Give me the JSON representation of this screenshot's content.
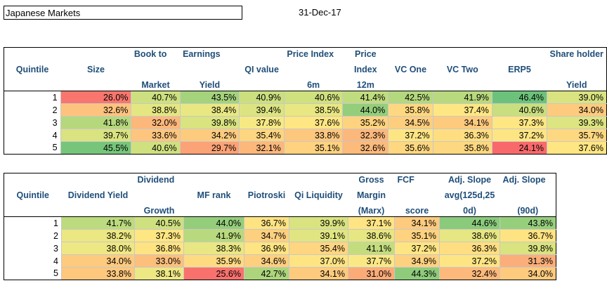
{
  "header": {
    "title": "Japanese Markets",
    "date": "31-Dec-17"
  },
  "table1": {
    "headers": [
      {
        "top": "",
        "bottom": "",
        "single": "Quintile"
      },
      {
        "top": "",
        "bottom": "",
        "single": "Size"
      },
      {
        "top": "Book to",
        "bottom": "Market",
        "single": ""
      },
      {
        "top": "Earnings",
        "bottom": "Yield",
        "single": ""
      },
      {
        "top": "",
        "bottom": "",
        "single": "QI value"
      },
      {
        "top": "Price Index",
        "bottom": "6m",
        "single": ""
      },
      {
        "top": "Price",
        "mid": "Index",
        "bottom": "12m",
        "single": ""
      },
      {
        "top": "",
        "bottom": "",
        "single": "VC One"
      },
      {
        "top": "",
        "bottom": "",
        "single": "VC Two"
      },
      {
        "top": "",
        "bottom": "",
        "single": "ERP5"
      },
      {
        "top": "Share holder",
        "bottom": "Yield",
        "single": ""
      }
    ],
    "rows": [
      {
        "q": "1",
        "vals": [
          "26.0%",
          "40.7%",
          "43.5%",
          "40.9%",
          "40.6%",
          "41.4%",
          "42.5%",
          "41.9%",
          "46.4%",
          "39.0%"
        ],
        "colors": [
          "#f8766d",
          "#cde07f",
          "#a4d37c",
          "#cbdf7f",
          "#cfe07f",
          "#bfdc7e",
          "#b4d87d",
          "#b8d97d",
          "#6cc27a",
          "#d9e380"
        ]
      },
      {
        "q": "2",
        "vals": [
          "32.6%",
          "38.8%",
          "38.4%",
          "39.4%",
          "38.5%",
          "44.0%",
          "35.8%",
          "37.4%",
          "40.6%",
          "34.0%"
        ],
        "colors": [
          "#fdc37e",
          "#e4e682",
          "#e8e782",
          "#dce482",
          "#e8e782",
          "#94ce7b",
          "#fed880",
          "#fee783",
          "#c9de7f",
          "#fdca7e"
        ]
      },
      {
        "q": "3",
        "vals": [
          "41.8%",
          "32.0%",
          "39.8%",
          "37.8%",
          "37.6%",
          "35.2%",
          "34.5%",
          "34.1%",
          "37.3%",
          "39.3%"
        ],
        "colors": [
          "#b6d87d",
          "#fcb77b",
          "#d9e380",
          "#f6e984",
          "#fee683",
          "#fed37f",
          "#fdce7e",
          "#fdca7e",
          "#fee683",
          "#dde482"
        ]
      },
      {
        "q": "4",
        "vals": [
          "39.7%",
          "33.6%",
          "34.2%",
          "35.4%",
          "33.8%",
          "32.3%",
          "37.2%",
          "36.3%",
          "37.2%",
          "35.7%"
        ],
        "colors": [
          "#d9e380",
          "#fdc57e",
          "#fdcb7e",
          "#fed580",
          "#fdc77e",
          "#fcb77b",
          "#fee583",
          "#fede81",
          "#fee583",
          "#fed880"
        ]
      },
      {
        "q": "5",
        "vals": [
          "45.5%",
          "40.6%",
          "29.7%",
          "32.1%",
          "35.1%",
          "32.6%",
          "35.6%",
          "35.8%",
          "24.1%",
          "37.6%"
        ],
        "colors": [
          "#76c57a",
          "#cfe07f",
          "#fba276",
          "#fcb77b",
          "#fed27f",
          "#fcba7b",
          "#fed780",
          "#fed880",
          "#f8696b",
          "#fee683"
        ]
      }
    ]
  },
  "table2": {
    "headers": [
      {
        "top": "",
        "bottom": "",
        "single": "Quintile"
      },
      {
        "top": "",
        "bottom": "",
        "single": "Dividend Yield"
      },
      {
        "top": "Dividend",
        "bottom": "Growth",
        "single": ""
      },
      {
        "top": "",
        "bottom": "",
        "single": "MF rank"
      },
      {
        "top": "",
        "bottom": "",
        "single": "Piotroski"
      },
      {
        "top": "",
        "bottom": "",
        "single": "Qi Liquidity"
      },
      {
        "top": "Gross",
        "mid": "Margin",
        "bottom": "(Marx)",
        "single": ""
      },
      {
        "top": "FCF",
        "bottom": "score",
        "single": ""
      },
      {
        "top": "Adj. Slope",
        "mid": "avg(125d,25",
        "bottom": "0d)",
        "single": ""
      },
      {
        "top": "Adj. Slope",
        "bottom": "(90d)",
        "single": ""
      }
    ],
    "rows": [
      {
        "q": "1",
        "vals": [
          "41.7%",
          "40.5%",
          "44.0%",
          "36.7%",
          "39.9%",
          "37.1%",
          "34.1%",
          "44.6%",
          "43.8%"
        ],
        "colors": [
          "#bcdb7e",
          "#cfe07f",
          "#94ce7b",
          "#fee382",
          "#d9e380",
          "#fee483",
          "#fdca7e",
          "#8acb7b",
          "#96cf7c"
        ]
      },
      {
        "q": "2",
        "vals": [
          "38.2%",
          "37.3%",
          "41.9%",
          "34.7%",
          "39.1%",
          "38.6%",
          "35.1%",
          "38.6%",
          "36.7%"
        ],
        "colors": [
          "#ebe783",
          "#fee683",
          "#b8d97d",
          "#fdd07f",
          "#e0e582",
          "#e6e682",
          "#fed27f",
          "#e6e682",
          "#fee382"
        ]
      },
      {
        "q": "3",
        "vals": [
          "38.0%",
          "36.8%",
          "38.3%",
          "36.9%",
          "35.4%",
          "41.1%",
          "37.2%",
          "36.3%",
          "39.8%"
        ],
        "colors": [
          "#eee884",
          "#fee382",
          "#e9e783",
          "#fee482",
          "#fed580",
          "#c3dd7e",
          "#fee583",
          "#fede81",
          "#d9e380"
        ]
      },
      {
        "q": "4",
        "vals": [
          "34.0%",
          "33.0%",
          "35.9%",
          "34.6%",
          "37.0%",
          "37.7%",
          "34.9%",
          "37.2%",
          "31.3%"
        ],
        "colors": [
          "#fdca7e",
          "#fcbf7c",
          "#feda81",
          "#fdcf7f",
          "#fee483",
          "#fae885",
          "#fdd17f",
          "#fee583",
          "#fbae79"
        ]
      },
      {
        "q": "5",
        "vals": [
          "33.8%",
          "38.1%",
          "25.6%",
          "42.7%",
          "34.1%",
          "31.0%",
          "44.3%",
          "32.4%",
          "34.0%"
        ],
        "colors": [
          "#fdc77e",
          "#ede784",
          "#f8716d",
          "#acd57c",
          "#fdca7e",
          "#fbab78",
          "#8ecc7b",
          "#fcb97b",
          "#fdca7e"
        ]
      }
    ]
  }
}
